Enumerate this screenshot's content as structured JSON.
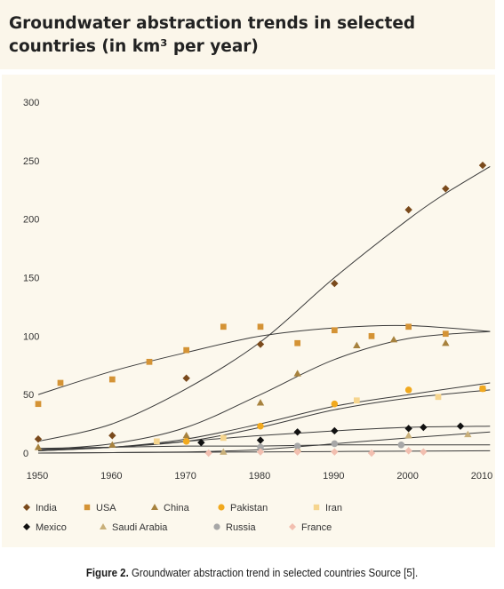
{
  "chart_data": {
    "type": "scatter",
    "title": "Groundwater abstraction trends in selected countries (in km³ per year)",
    "x_ticks": [
      1950,
      1960,
      1970,
      1980,
      1990,
      2000,
      2010
    ],
    "y_ticks": [
      0,
      50,
      100,
      150,
      200,
      250,
      300
    ],
    "xlim": [
      1950,
      2012
    ],
    "ylim": [
      0,
      300
    ],
    "grid": false,
    "legend_position": "bottom",
    "series": [
      {
        "name": "India",
        "marker": "diamond",
        "color": "#7a4a1c",
        "points": [
          [
            1950,
            12
          ],
          [
            1960,
            15
          ],
          [
            1970,
            64
          ],
          [
            1980,
            93
          ],
          [
            1990,
            145
          ],
          [
            2000,
            208
          ],
          [
            2005,
            226
          ],
          [
            2010,
            246
          ]
        ],
        "trend": [
          [
            1950,
            10
          ],
          [
            1960,
            25
          ],
          [
            1970,
            55
          ],
          [
            1980,
            95
          ],
          [
            1990,
            150
          ],
          [
            2000,
            200
          ],
          [
            2005,
            222
          ],
          [
            2011,
            245
          ]
        ]
      },
      {
        "name": "USA",
        "marker": "square",
        "color": "#d49335",
        "points": [
          [
            1950,
            42
          ],
          [
            1953,
            60
          ],
          [
            1960,
            63
          ],
          [
            1965,
            78
          ],
          [
            1970,
            88
          ],
          [
            1975,
            108
          ],
          [
            1980,
            108
          ],
          [
            1985,
            94
          ],
          [
            1990,
            105
          ],
          [
            1995,
            100
          ],
          [
            2000,
            108
          ],
          [
            2005,
            102
          ],
          [
            2010,
            55
          ]
        ],
        "trend": [
          [
            1950,
            50
          ],
          [
            1960,
            70
          ],
          [
            1970,
            86
          ],
          [
            1980,
            100
          ],
          [
            1990,
            107
          ],
          [
            2000,
            109
          ],
          [
            2011,
            104
          ]
        ]
      },
      {
        "name": "China",
        "marker": "triangle",
        "color": "#a7823e",
        "points": [
          [
            1950,
            5
          ],
          [
            1960,
            7
          ],
          [
            1970,
            15
          ],
          [
            1980,
            43
          ],
          [
            1985,
            68
          ],
          [
            1993,
            92
          ],
          [
            1998,
            97
          ],
          [
            2005,
            94
          ]
        ],
        "trend": [
          [
            1950,
            3
          ],
          [
            1960,
            8
          ],
          [
            1970,
            22
          ],
          [
            1980,
            50
          ],
          [
            1990,
            80
          ],
          [
            2000,
            98
          ],
          [
            2011,
            104
          ]
        ]
      },
      {
        "name": "Pakistan",
        "marker": "circle",
        "color": "#f1a91e",
        "points": [
          [
            1970,
            10
          ],
          [
            1980,
            23
          ],
          [
            1990,
            42
          ],
          [
            2000,
            54
          ],
          [
            2010,
            55
          ]
        ],
        "trend": [
          [
            1950,
            2
          ],
          [
            1960,
            5
          ],
          [
            1970,
            12
          ],
          [
            1980,
            25
          ],
          [
            1990,
            40
          ],
          [
            2000,
            50
          ],
          [
            2011,
            60
          ]
        ]
      },
      {
        "name": "Iran",
        "marker": "square",
        "color": "#f6d58e",
        "points": [
          [
            1966,
            10
          ],
          [
            1975,
            13
          ],
          [
            1993,
            45
          ],
          [
            2004,
            48
          ]
        ],
        "trend": [
          [
            1950,
            2
          ],
          [
            1960,
            5
          ],
          [
            1970,
            10
          ],
          [
            1980,
            22
          ],
          [
            1990,
            37
          ],
          [
            2000,
            47
          ],
          [
            2011,
            54
          ]
        ]
      },
      {
        "name": "Mexico",
        "marker": "diamond",
        "color": "#111111",
        "points": [
          [
            1972,
            9
          ],
          [
            1980,
            11
          ],
          [
            1985,
            18
          ],
          [
            1990,
            19
          ],
          [
            2000,
            21
          ],
          [
            2002,
            22
          ],
          [
            2007,
            23
          ]
        ],
        "trend": [
          [
            1950,
            3
          ],
          [
            1960,
            5
          ],
          [
            1970,
            10
          ],
          [
            1980,
            15
          ],
          [
            1990,
            19
          ],
          [
            2000,
            22
          ],
          [
            2011,
            23
          ]
        ]
      },
      {
        "name": "Saudi Arabia",
        "marker": "triangle",
        "color": "#c9b07a",
        "points": [
          [
            1975,
            1
          ],
          [
            1985,
            4
          ],
          [
            2000,
            15
          ],
          [
            2008,
            16
          ]
        ],
        "trend": [
          [
            1950,
            0
          ],
          [
            1970,
            1
          ],
          [
            1980,
            3
          ],
          [
            1990,
            8
          ],
          [
            2000,
            13
          ],
          [
            2011,
            18
          ]
        ]
      },
      {
        "name": "Russia",
        "marker": "circle",
        "color": "#a7a7a7",
        "points": [
          [
            1980,
            5
          ],
          [
            1985,
            6
          ],
          [
            1990,
            8
          ],
          [
            1999,
            7
          ]
        ],
        "trend": [
          [
            1950,
            4
          ],
          [
            1960,
            5
          ],
          [
            1970,
            6
          ],
          [
            1980,
            6
          ],
          [
            1990,
            7
          ],
          [
            2000,
            7
          ],
          [
            2011,
            7
          ]
        ]
      },
      {
        "name": "France",
        "marker": "diamond",
        "color": "#f2bfb0",
        "points": [
          [
            1973,
            0
          ],
          [
            1980,
            1
          ],
          [
            1985,
            1
          ],
          [
            1990,
            1
          ],
          [
            1995,
            0
          ],
          [
            2000,
            2
          ],
          [
            2002,
            1
          ]
        ],
        "trend": [
          [
            1950,
            0
          ],
          [
            1980,
            1
          ],
          [
            2011,
            2
          ]
        ]
      }
    ]
  },
  "caption": {
    "label": "Figure 2.",
    "text": " Groundwater abstraction trend in selected countries Source [5]."
  }
}
